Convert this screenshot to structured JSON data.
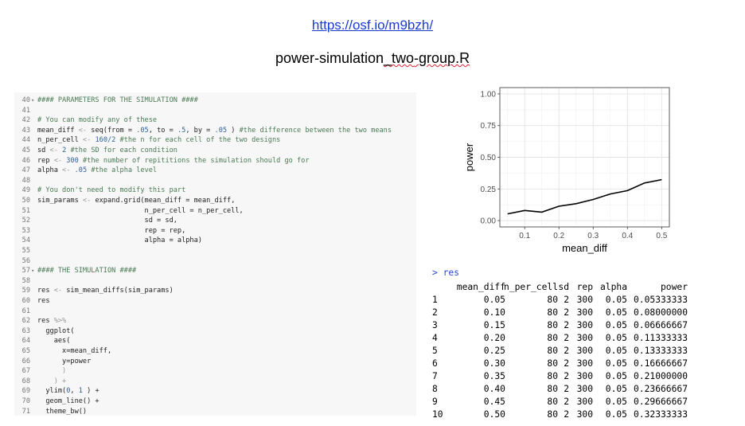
{
  "header": {
    "url": "https://osf.io/m9bzh/",
    "filename_pre": "power-simulation",
    "filename_mid": "_two",
    "filename_post": "-group.R"
  },
  "code_lines": [
    {
      "n": "40",
      "fold": true,
      "t": [
        [
          "cm",
          "#### PARAMETERS FOR THE SIMULATION ####"
        ]
      ]
    },
    {
      "n": "41",
      "t": []
    },
    {
      "n": "42",
      "t": [
        [
          "cm",
          "# You can modify any of these"
        ]
      ]
    },
    {
      "n": "43",
      "t": [
        [
          "",
          "mean_diff "
        ],
        [
          "op",
          "<-"
        ],
        [
          "",
          " seq(from = "
        ],
        [
          "num",
          ".05"
        ],
        [
          "",
          ", to = "
        ],
        [
          "num",
          ".5"
        ],
        [
          "",
          ", by = "
        ],
        [
          "num",
          ".05"
        ],
        [
          "",
          " ) "
        ],
        [
          "cm",
          "#the difference between the two means"
        ]
      ]
    },
    {
      "n": "44",
      "t": [
        [
          "",
          "n_per_cell "
        ],
        [
          "op",
          "<-"
        ],
        [
          "",
          " "
        ],
        [
          "num",
          "160/2"
        ],
        [
          "",
          " "
        ],
        [
          "cm",
          "#the n for each cell of the two designs"
        ]
      ]
    },
    {
      "n": "45",
      "t": [
        [
          "",
          "sd "
        ],
        [
          "op",
          "<-"
        ],
        [
          "",
          " "
        ],
        [
          "num",
          "2"
        ],
        [
          "",
          " "
        ],
        [
          "cm",
          "#the SD for each condition"
        ]
      ]
    },
    {
      "n": "46",
      "t": [
        [
          "",
          "rep "
        ],
        [
          "op",
          "<-"
        ],
        [
          "",
          " "
        ],
        [
          "num",
          "300"
        ],
        [
          "",
          " "
        ],
        [
          "cm",
          "#the number of repititions the simulation should go for"
        ]
      ]
    },
    {
      "n": "47",
      "t": [
        [
          "",
          "alpha "
        ],
        [
          "op",
          "<-"
        ],
        [
          "",
          " "
        ],
        [
          "num",
          ".05"
        ],
        [
          "",
          " "
        ],
        [
          "cm",
          "#the alpha level"
        ]
      ]
    },
    {
      "n": "48",
      "t": []
    },
    {
      "n": "49",
      "t": [
        [
          "cm",
          "# You don't need to modify this part"
        ]
      ]
    },
    {
      "n": "50",
      "t": [
        [
          "",
          "sim_params "
        ],
        [
          "op",
          "<-"
        ],
        [
          "",
          " expand.grid(mean_diff = mean_diff,"
        ]
      ]
    },
    {
      "n": "51",
      "t": [
        [
          "",
          "                          n_per_cell = n_per_cell,"
        ]
      ]
    },
    {
      "n": "52",
      "t": [
        [
          "",
          "                          sd = sd,"
        ]
      ]
    },
    {
      "n": "53",
      "t": [
        [
          "",
          "                          rep = rep,"
        ]
      ]
    },
    {
      "n": "54",
      "t": [
        [
          "",
          "                          alpha = alpha)"
        ]
      ]
    },
    {
      "n": "55",
      "t": []
    },
    {
      "n": "56",
      "t": []
    },
    {
      "n": "57",
      "fold": true,
      "t": [
        [
          "cm",
          "#### THE SIMULATION ####"
        ]
      ]
    },
    {
      "n": "58",
      "t": []
    },
    {
      "n": "59",
      "t": [
        [
          "",
          "res "
        ],
        [
          "op",
          "<-"
        ],
        [
          "",
          " sim_mean_diffs(sim_params)"
        ]
      ]
    },
    {
      "n": "60",
      "t": [
        [
          "",
          "res"
        ]
      ]
    },
    {
      "n": "61",
      "t": []
    },
    {
      "n": "62",
      "t": [
        [
          "",
          "res "
        ],
        [
          "op",
          "%>%"
        ]
      ]
    },
    {
      "n": "63",
      "t": [
        [
          "",
          "  ggplot("
        ]
      ]
    },
    {
      "n": "64",
      "t": [
        [
          "",
          "    aes("
        ]
      ]
    },
    {
      "n": "65",
      "t": [
        [
          "",
          "      x=mean_diff,"
        ]
      ]
    },
    {
      "n": "66",
      "t": [
        [
          "",
          "      y=power"
        ]
      ]
    },
    {
      "n": "67",
      "t": [
        [
          "op",
          "      )"
        ]
      ]
    },
    {
      "n": "68",
      "t": [
        [
          "op",
          "    ) +"
        ]
      ]
    },
    {
      "n": "69",
      "t": [
        [
          "",
          "  ylim("
        ],
        [
          "num",
          "0"
        ],
        [
          "",
          ", "
        ],
        [
          "num",
          "1"
        ],
        [
          "",
          " ) +"
        ]
      ]
    },
    {
      "n": "70",
      "t": [
        [
          "",
          "  geom_line() +"
        ]
      ]
    },
    {
      "n": "71",
      "t": [
        [
          "",
          "  theme_bw()"
        ]
      ]
    }
  ],
  "chart_data": {
    "type": "line",
    "x": [
      0.05,
      0.1,
      0.15,
      0.2,
      0.25,
      0.3,
      0.35,
      0.4,
      0.45,
      0.5
    ],
    "y": [
      0.05333333,
      0.08,
      0.06666667,
      0.11333333,
      0.13333333,
      0.16666667,
      0.21,
      0.23666667,
      0.29666667,
      0.32333333
    ],
    "xlabel": "mean_diff",
    "ylabel": "power",
    "ylim": [
      0,
      1
    ],
    "xticks": [
      "0.1",
      "0.2",
      "0.3",
      "0.4",
      "0.5"
    ],
    "yticks": [
      "0.00",
      "0.25",
      "0.50",
      "0.75",
      "1.00"
    ],
    "grid": true
  },
  "console": {
    "prompt": "> res",
    "headers": [
      "mean_diff",
      "n_per_cell",
      "sd",
      "rep",
      "alpha",
      "power"
    ],
    "rows": [
      [
        "1",
        "0.05",
        "80",
        "2",
        "300",
        "0.05",
        "0.05333333"
      ],
      [
        "2",
        "0.10",
        "80",
        "2",
        "300",
        "0.05",
        "0.08000000"
      ],
      [
        "3",
        "0.15",
        "80",
        "2",
        "300",
        "0.05",
        "0.06666667"
      ],
      [
        "4",
        "0.20",
        "80",
        "2",
        "300",
        "0.05",
        "0.11333333"
      ],
      [
        "5",
        "0.25",
        "80",
        "2",
        "300",
        "0.05",
        "0.13333333"
      ],
      [
        "6",
        "0.30",
        "80",
        "2",
        "300",
        "0.05",
        "0.16666667"
      ],
      [
        "7",
        "0.35",
        "80",
        "2",
        "300",
        "0.05",
        "0.21000000"
      ],
      [
        "8",
        "0.40",
        "80",
        "2",
        "300",
        "0.05",
        "0.23666667"
      ],
      [
        "9",
        "0.45",
        "80",
        "2",
        "300",
        "0.05",
        "0.29666667"
      ],
      [
        "10",
        "0.50",
        "80",
        "2",
        "300",
        "0.05",
        "0.32333333"
      ]
    ]
  }
}
